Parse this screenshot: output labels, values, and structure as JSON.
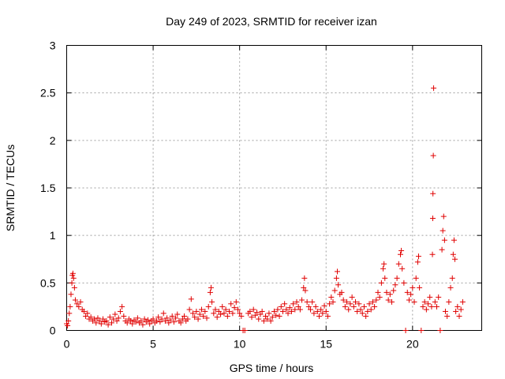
{
  "chart_data": {
    "type": "scatter",
    "title": "Day 249 of 2023, SRMTID for receiver izan",
    "xlabel": "GPS time / hours",
    "ylabel": "SRMTID / TECUs",
    "xlim": [
      0,
      24
    ],
    "ylim": [
      0,
      3
    ],
    "xticks": [
      0,
      5,
      10,
      15,
      20
    ],
    "xtick_labels": [
      "0",
      "5",
      "10",
      "15",
      "20"
    ],
    "yticks": [
      0,
      0.5,
      1,
      1.5,
      2,
      2.5,
      3
    ],
    "ytick_labels": [
      "0",
      "0.5",
      "1",
      "1.5",
      "2",
      "2.5",
      "3"
    ],
    "grid": true,
    "marker": "+",
    "color": "#e00000",
    "series": [
      {
        "name": "SRMTID",
        "points": [
          [
            0.0,
            0.07
          ],
          [
            0.05,
            0.05
          ],
          [
            0.1,
            0.1
          ],
          [
            0.15,
            0.18
          ],
          [
            0.2,
            0.25
          ],
          [
            0.25,
            0.38
          ],
          [
            0.3,
            0.5
          ],
          [
            0.33,
            0.58
          ],
          [
            0.36,
            0.6
          ],
          [
            0.4,
            0.55
          ],
          [
            0.45,
            0.45
          ],
          [
            0.5,
            0.32
          ],
          [
            0.6,
            0.28
          ],
          [
            0.7,
            0.25
          ],
          [
            0.8,
            0.3
          ],
          [
            0.9,
            0.22
          ],
          [
            1.0,
            0.2
          ],
          [
            1.1,
            0.15
          ],
          [
            1.2,
            0.18
          ],
          [
            1.3,
            0.12
          ],
          [
            1.4,
            0.14
          ],
          [
            1.5,
            0.1
          ],
          [
            1.6,
            0.12
          ],
          [
            1.7,
            0.08
          ],
          [
            1.8,
            0.13
          ],
          [
            1.9,
            0.1
          ],
          [
            2.0,
            0.07
          ],
          [
            2.1,
            0.12
          ],
          [
            2.2,
            0.09
          ],
          [
            2.3,
            0.1
          ],
          [
            2.4,
            0.06
          ],
          [
            2.5,
            0.14
          ],
          [
            2.6,
            0.08
          ],
          [
            2.7,
            0.12
          ],
          [
            2.8,
            0.17
          ],
          [
            2.9,
            0.1
          ],
          [
            3.0,
            0.13
          ],
          [
            3.1,
            0.2
          ],
          [
            3.2,
            0.25
          ],
          [
            3.3,
            0.15
          ],
          [
            3.4,
            0.1
          ],
          [
            3.5,
            0.08
          ],
          [
            3.6,
            0.12
          ],
          [
            3.7,
            0.1
          ],
          [
            3.8,
            0.07
          ],
          [
            3.9,
            0.11
          ],
          [
            4.0,
            0.09
          ],
          [
            4.1,
            0.13
          ],
          [
            4.2,
            0.08
          ],
          [
            4.3,
            0.1
          ],
          [
            4.4,
            0.06
          ],
          [
            4.5,
            0.12
          ],
          [
            4.6,
            0.09
          ],
          [
            4.7,
            0.11
          ],
          [
            4.8,
            0.07
          ],
          [
            4.9,
            0.1
          ],
          [
            5.0,
            0.12
          ],
          [
            5.1,
            0.08
          ],
          [
            5.2,
            0.1
          ],
          [
            5.3,
            0.14
          ],
          [
            5.4,
            0.09
          ],
          [
            5.5,
            0.12
          ],
          [
            5.6,
            0.18
          ],
          [
            5.7,
            0.1
          ],
          [
            5.8,
            0.13
          ],
          [
            5.9,
            0.08
          ],
          [
            6.0,
            0.11
          ],
          [
            6.1,
            0.15
          ],
          [
            6.2,
            0.09
          ],
          [
            6.3,
            0.13
          ],
          [
            6.4,
            0.17
          ],
          [
            6.5,
            0.1
          ],
          [
            6.6,
            0.08
          ],
          [
            6.7,
            0.12
          ],
          [
            6.8,
            0.15
          ],
          [
            6.9,
            0.1
          ],
          [
            7.0,
            0.12
          ],
          [
            7.1,
            0.22
          ],
          [
            7.2,
            0.33
          ],
          [
            7.3,
            0.18
          ],
          [
            7.4,
            0.14
          ],
          [
            7.5,
            0.2
          ],
          [
            7.6,
            0.12
          ],
          [
            7.7,
            0.17
          ],
          [
            7.8,
            0.22
          ],
          [
            7.9,
            0.15
          ],
          [
            8.0,
            0.2
          ],
          [
            8.1,
            0.13
          ],
          [
            8.2,
            0.25
          ],
          [
            8.3,
            0.4
          ],
          [
            8.35,
            0.45
          ],
          [
            8.4,
            0.3
          ],
          [
            8.5,
            0.18
          ],
          [
            8.6,
            0.22
          ],
          [
            8.7,
            0.14
          ],
          [
            8.8,
            0.2
          ],
          [
            8.9,
            0.17
          ],
          [
            9.0,
            0.25
          ],
          [
            9.1,
            0.18
          ],
          [
            9.2,
            0.22
          ],
          [
            9.3,
            0.15
          ],
          [
            9.4,
            0.2
          ],
          [
            9.5,
            0.28
          ],
          [
            9.6,
            0.18
          ],
          [
            9.7,
            0.24
          ],
          [
            9.8,
            0.3
          ],
          [
            9.9,
            0.22
          ],
          [
            10.0,
            0.18
          ],
          [
            10.1,
            0.15
          ],
          [
            10.2,
            0.0
          ],
          [
            10.3,
            0.0
          ],
          [
            10.5,
            0.18
          ],
          [
            10.6,
            0.2
          ],
          [
            10.7,
            0.14
          ],
          [
            10.8,
            0.22
          ],
          [
            10.9,
            0.16
          ],
          [
            11.0,
            0.19
          ],
          [
            11.1,
            0.12
          ],
          [
            11.2,
            0.17
          ],
          [
            11.3,
            0.2
          ],
          [
            11.4,
            0.1
          ],
          [
            11.5,
            0.15
          ],
          [
            11.6,
            0.12
          ],
          [
            11.7,
            0.18
          ],
          [
            11.8,
            0.1
          ],
          [
            11.9,
            0.14
          ],
          [
            12.0,
            0.2
          ],
          [
            12.1,
            0.16
          ],
          [
            12.2,
            0.22
          ],
          [
            12.3,
            0.15
          ],
          [
            12.4,
            0.25
          ],
          [
            12.5,
            0.2
          ],
          [
            12.6,
            0.28
          ],
          [
            12.7,
            0.22
          ],
          [
            12.8,
            0.18
          ],
          [
            12.9,
            0.24
          ],
          [
            13.0,
            0.2
          ],
          [
            13.1,
            0.28
          ],
          [
            13.2,
            0.22
          ],
          [
            13.3,
            0.3
          ],
          [
            13.4,
            0.25
          ],
          [
            13.5,
            0.22
          ],
          [
            13.6,
            0.32
          ],
          [
            13.7,
            0.45
          ],
          [
            13.75,
            0.55
          ],
          [
            13.8,
            0.42
          ],
          [
            13.9,
            0.3
          ],
          [
            14.0,
            0.25
          ],
          [
            14.1,
            0.22
          ],
          [
            14.2,
            0.3
          ],
          [
            14.3,
            0.18
          ],
          [
            14.4,
            0.25
          ],
          [
            14.5,
            0.2
          ],
          [
            14.6,
            0.15
          ],
          [
            14.7,
            0.22
          ],
          [
            14.8,
            0.18
          ],
          [
            14.9,
            0.26
          ],
          [
            15.0,
            0.2
          ],
          [
            15.1,
            0.15
          ],
          [
            15.2,
            0.28
          ],
          [
            15.3,
            0.35
          ],
          [
            15.4,
            0.3
          ],
          [
            15.5,
            0.42
          ],
          [
            15.6,
            0.55
          ],
          [
            15.65,
            0.62
          ],
          [
            15.7,
            0.48
          ],
          [
            15.8,
            0.38
          ],
          [
            15.9,
            0.4
          ],
          [
            16.0,
            0.32
          ],
          [
            16.1,
            0.25
          ],
          [
            16.2,
            0.3
          ],
          [
            16.3,
            0.22
          ],
          [
            16.4,
            0.28
          ],
          [
            16.5,
            0.35
          ],
          [
            16.6,
            0.25
          ],
          [
            16.7,
            0.3
          ],
          [
            16.8,
            0.2
          ],
          [
            16.9,
            0.28
          ],
          [
            17.0,
            0.22
          ],
          [
            17.1,
            0.18
          ],
          [
            17.2,
            0.25
          ],
          [
            17.3,
            0.15
          ],
          [
            17.4,
            0.2
          ],
          [
            17.5,
            0.28
          ],
          [
            17.6,
            0.22
          ],
          [
            17.7,
            0.3
          ],
          [
            17.8,
            0.25
          ],
          [
            17.9,
            0.32
          ],
          [
            18.0,
            0.4
          ],
          [
            18.1,
            0.35
          ],
          [
            18.2,
            0.5
          ],
          [
            18.3,
            0.65
          ],
          [
            18.35,
            0.7
          ],
          [
            18.4,
            0.55
          ],
          [
            18.5,
            0.4
          ],
          [
            18.6,
            0.32
          ],
          [
            18.7,
            0.38
          ],
          [
            18.8,
            0.3
          ],
          [
            18.9,
            0.42
          ],
          [
            19.0,
            0.48
          ],
          [
            19.1,
            0.55
          ],
          [
            19.2,
            0.7
          ],
          [
            19.3,
            0.8
          ],
          [
            19.35,
            0.84
          ],
          [
            19.4,
            0.65
          ],
          [
            19.5,
            0.5
          ],
          [
            19.6,
            0.0
          ],
          [
            19.7,
            0.4
          ],
          [
            19.8,
            0.32
          ],
          [
            19.9,
            0.38
          ],
          [
            20.0,
            0.45
          ],
          [
            20.1,
            0.3
          ],
          [
            20.2,
            0.55
          ],
          [
            20.3,
            0.72
          ],
          [
            20.35,
            0.78
          ],
          [
            20.4,
            0.45
          ],
          [
            20.5,
            0.0
          ],
          [
            20.6,
            0.25
          ],
          [
            20.7,
            0.3
          ],
          [
            20.8,
            0.22
          ],
          [
            20.9,
            0.28
          ],
          [
            21.0,
            0.35
          ],
          [
            21.1,
            0.25
          ],
          [
            21.15,
            0.8
          ],
          [
            21.17,
            1.18
          ],
          [
            21.18,
            1.44
          ],
          [
            21.2,
            1.84
          ],
          [
            21.22,
            2.55
          ],
          [
            21.3,
            0.3
          ],
          [
            21.4,
            0.25
          ],
          [
            21.5,
            0.35
          ],
          [
            21.6,
            0.0
          ],
          [
            21.7,
            0.85
          ],
          [
            21.75,
            1.05
          ],
          [
            21.8,
            1.2
          ],
          [
            21.85,
            0.95
          ],
          [
            21.9,
            0.2
          ],
          [
            22.0,
            0.15
          ],
          [
            22.1,
            0.3
          ],
          [
            22.2,
            0.45
          ],
          [
            22.3,
            0.55
          ],
          [
            22.35,
            0.8
          ],
          [
            22.4,
            0.95
          ],
          [
            22.45,
            0.75
          ],
          [
            22.5,
            0.2
          ],
          [
            22.6,
            0.25
          ],
          [
            22.7,
            0.15
          ],
          [
            22.8,
            0.22
          ],
          [
            22.9,
            0.3
          ]
        ]
      }
    ]
  }
}
